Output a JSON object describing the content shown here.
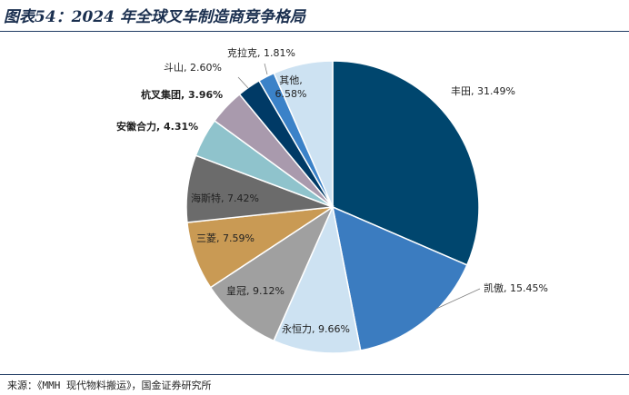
{
  "title": "图表54：2024 年全球叉车制造商竞争格局",
  "source": "来源：《MMH 现代物料搬运》，国金证券研究所",
  "chart_data": {
    "type": "pie",
    "slices": [
      {
        "name": "丰田",
        "value": 31.49,
        "label": "丰田, 31.49%",
        "color": "#00466e",
        "bold": false
      },
      {
        "name": "凯傲",
        "value": 15.45,
        "label": "凯傲, 15.45%",
        "color": "#3b7cc0",
        "bold": false
      },
      {
        "name": "永恒力",
        "value": 9.66,
        "label": "永恒力, 9.66%",
        "color": "#cde2f2",
        "bold": false
      },
      {
        "name": "皇冠",
        "value": 9.12,
        "label": "皇冠, 9.12%",
        "color": "#a0a0a0",
        "bold": false
      },
      {
        "name": "三菱",
        "value": 7.59,
        "label": "三菱, 7.59%",
        "color": "#c99a54",
        "bold": false
      },
      {
        "name": "海斯特",
        "value": 7.42,
        "label": "海斯特, 7.42%",
        "color": "#6b6b6b",
        "bold": false
      },
      {
        "name": "安徽合力",
        "value": 4.31,
        "label": "安徽合力, 4.31%",
        "color": "#8fc3cc",
        "bold": true
      },
      {
        "name": "杭叉集团",
        "value": 3.96,
        "label": "杭叉集团, 3.96%",
        "color": "#a99aad",
        "bold": true
      },
      {
        "name": "斗山",
        "value": 2.6,
        "label": "斗山, 2.60%",
        "color": "#003a66",
        "bold": false
      },
      {
        "name": "克拉克",
        "value": 1.81,
        "label": "克拉克, 1.81%",
        "color": "#3b82c8",
        "bold": false
      },
      {
        "name": "其他",
        "value": 6.58,
        "label": "其他,\n6.58%",
        "color": "#cde2f2",
        "bold": false
      }
    ]
  }
}
